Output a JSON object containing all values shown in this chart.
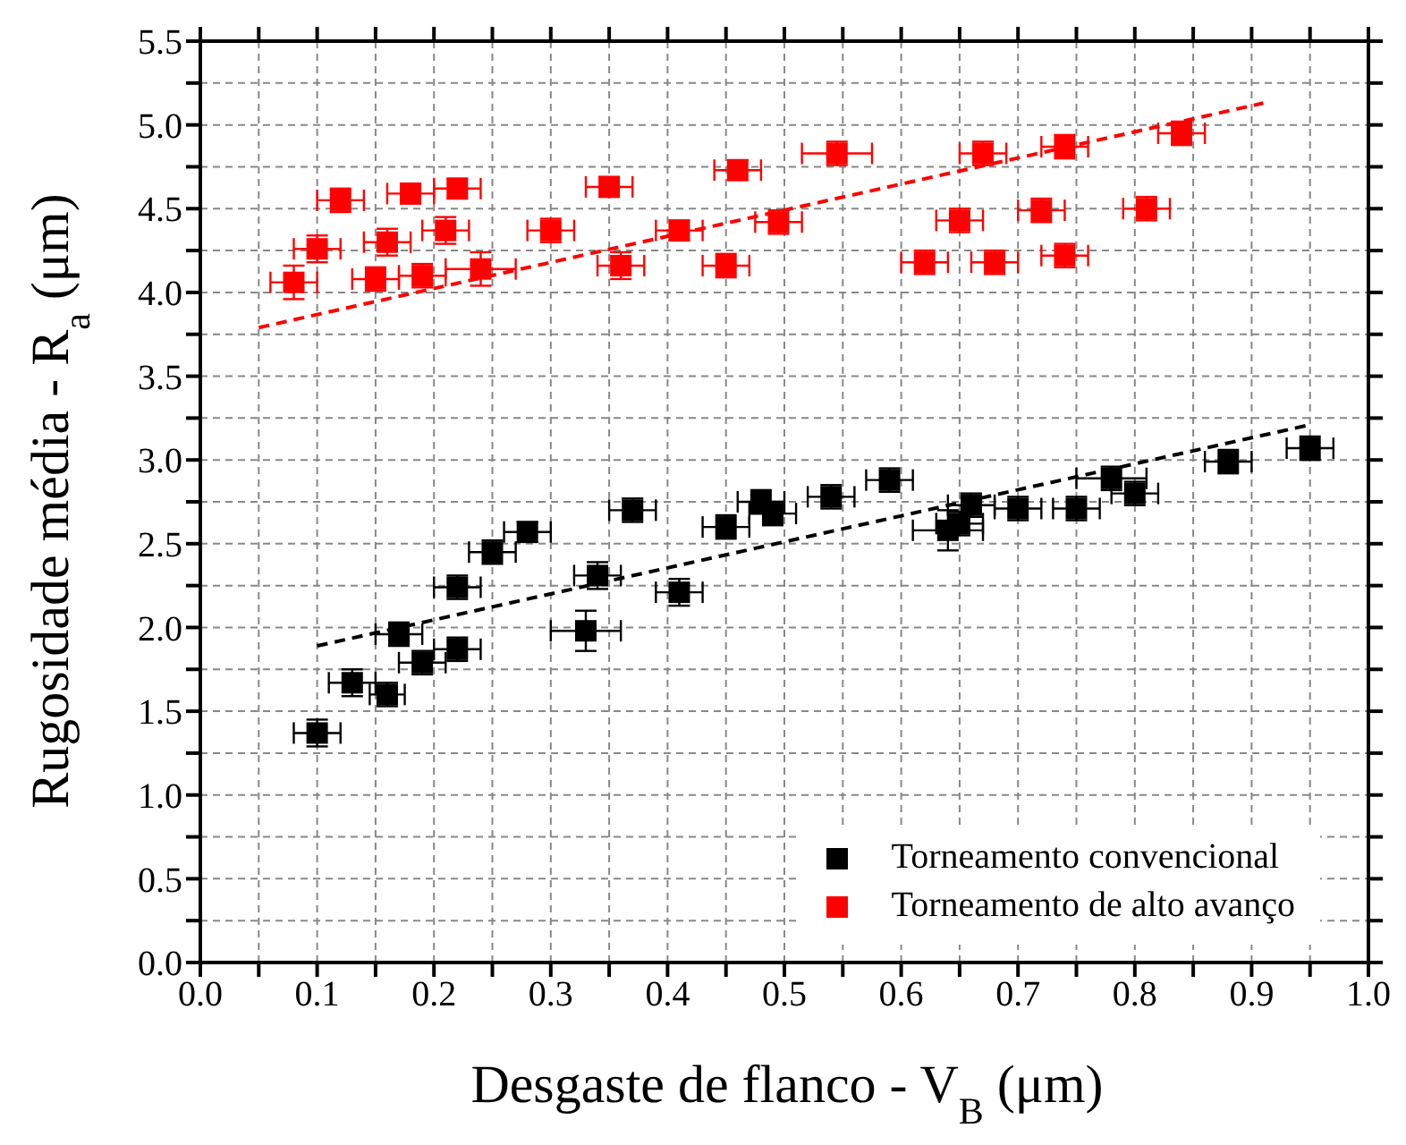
{
  "chart_data": {
    "type": "scatter",
    "xlabel": "Desgaste de flanco - V$_{B}$ (μm)",
    "ylabel": "Rugosidade média - R$_{a}$ (μm)",
    "xlim": [
      0,
      1
    ],
    "ylim": [
      0,
      5.5
    ],
    "xticks": [
      {
        "value": 0,
        "label": "0.0"
      },
      {
        "value": 0.05,
        "label": null
      },
      0.1,
      {
        "value": 0.15,
        "label": null
      },
      0.2,
      {
        "value": 0.25,
        "label": null
      },
      0.3,
      {
        "value": 0.35,
        "label": null
      },
      0.4,
      {
        "value": 0.45,
        "label": null
      },
      0.5,
      {
        "value": 0.55,
        "label": null
      },
      0.6,
      {
        "value": 0.65,
        "label": null
      },
      0.7,
      {
        "value": 0.75,
        "label": null
      },
      0.8,
      {
        "value": 0.85,
        "label": null
      },
      0.9,
      {
        "value": 0.95,
        "label": null
      },
      {
        "value": 1,
        "label": "1.0"
      }
    ],
    "yticks": [
      {
        "value": 0,
        "label": "0.0"
      },
      {
        "value": 0.25,
        "label": null
      },
      0.5,
      {
        "value": 0.75,
        "label": null
      },
      {
        "value": 1,
        "label": "1.0"
      },
      {
        "value": 1.25,
        "label": null
      },
      1.5,
      {
        "value": 1.75,
        "label": null
      },
      {
        "value": 2,
        "label": "2.0"
      },
      {
        "value": 2.25,
        "label": null
      },
      2.5,
      {
        "value": 2.75,
        "label": null
      },
      {
        "value": 3,
        "label": "3.0"
      },
      {
        "value": 3.25,
        "label": null
      },
      3.5,
      {
        "value": 3.75,
        "label": null
      },
      {
        "value": 4,
        "label": "4.0"
      },
      {
        "value": 4.25,
        "label": null
      },
      4.5,
      {
        "value": 4.75,
        "label": null
      },
      {
        "value": 5,
        "label": "5.0"
      },
      {
        "value": 5.25,
        "label": null
      },
      5.5
    ],
    "grid": true,
    "legend": "bottom right",
    "marker": "square",
    "series": [
      {
        "name": "Torneamento convencional",
        "color": "#000000",
        "x": [
          0.1,
          0.13,
          0.16,
          0.17,
          0.19,
          0.22,
          0.22,
          0.25,
          0.28,
          0.33,
          0.34,
          0.37,
          0.41,
          0.45,
          0.48,
          0.49,
          0.54,
          0.59,
          0.64,
          0.65,
          0.66,
          0.7,
          0.75,
          0.78,
          0.8,
          0.88,
          0.95
        ],
        "values": [
          1.37,
          1.67,
          1.6,
          1.96,
          1.79,
          2.24,
          1.87,
          2.45,
          2.57,
          1.98,
          2.31,
          2.7,
          2.21,
          2.6,
          2.75,
          2.68,
          2.78,
          2.88,
          2.58,
          2.62,
          2.73,
          2.71,
          2.71,
          2.89,
          2.8,
          2.99,
          3.07
        ],
        "errors": [
          0.08,
          0.08,
          0.07,
          0.07,
          0.07,
          0.07,
          0.07,
          0.07,
          0.06,
          0.12,
          0.08,
          0.07,
          0.08,
          0.07,
          0.07,
          0.07,
          0.07,
          0.07,
          0.12,
          0.07,
          0.07,
          0.07,
          0.07,
          0.07,
          0.07,
          0.07,
          0.07
        ],
        "xerrors": [
          0.02,
          0.02,
          0.015,
          0.02,
          0.02,
          0.02,
          0.02,
          0.02,
          0.02,
          0.03,
          0.02,
          0.02,
          0.02,
          0.02,
          0.02,
          0.02,
          0.02,
          0.02,
          0.03,
          0.02,
          0.02,
          0.02,
          0.02,
          0.03,
          0.02,
          0.02,
          0.02
        ]
      },
      {
        "name": "Torneamento de alto avanço",
        "color": "#ff0000",
        "x": [
          0.08,
          0.1,
          0.12,
          0.15,
          0.16,
          0.18,
          0.19,
          0.21,
          0.22,
          0.24,
          0.3,
          0.35,
          0.36,
          0.41,
          0.45,
          0.46,
          0.495,
          0.545,
          0.62,
          0.65,
          0.67,
          0.68,
          0.72,
          0.74,
          0.74,
          0.81,
          0.84
        ],
        "values": [
          4.06,
          4.26,
          4.55,
          4.08,
          4.3,
          4.59,
          4.1,
          4.37,
          4.62,
          4.14,
          4.37,
          4.63,
          4.16,
          4.37,
          4.16,
          4.73,
          4.42,
          4.83,
          4.18,
          4.43,
          4.83,
          4.18,
          4.49,
          4.87,
          4.22,
          4.5,
          4.95
        ],
        "errors": [
          0.1,
          0.08,
          0.07,
          0.07,
          0.08,
          0.06,
          0.07,
          0.08,
          0.06,
          0.1,
          0.07,
          0.06,
          0.08,
          0.06,
          0.07,
          0.06,
          0.07,
          0.07,
          0.07,
          0.07,
          0.07,
          0.07,
          0.07,
          0.07,
          0.07,
          0.07,
          0.07
        ],
        "xerrors": [
          0.02,
          0.02,
          0.02,
          0.02,
          0.02,
          0.02,
          0.02,
          0.02,
          0.02,
          0.03,
          0.02,
          0.02,
          0.02,
          0.02,
          0.02,
          0.02,
          0.02,
          0.03,
          0.02,
          0.02,
          0.02,
          0.02,
          0.02,
          0.02,
          0.02,
          0.02,
          0.02
        ]
      },
      {
        "type": "line",
        "color": "#ff0000",
        "line_style": "dashed",
        "marker": "none",
        "x": [
          0.05,
          0.91
        ],
        "values": [
          3.79,
          5.13
        ]
      },
      {
        "type": "line",
        "color": "#000000",
        "line_style": "dashed",
        "marker": "none",
        "x": [
          0.1,
          0.95
        ],
        "values": [
          1.89,
          3.21
        ]
      }
    ]
  }
}
